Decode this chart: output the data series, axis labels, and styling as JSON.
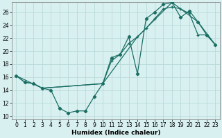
{
  "xlabel": "Humidex (Indice chaleur)",
  "bg_color": "#d9f0f0",
  "grid_color": "#b8dada",
  "line_color": "#1a6e64",
  "xlim": [
    -0.5,
    23.5
  ],
  "ylim": [
    9.5,
    27.5
  ],
  "xticks": [
    0,
    1,
    2,
    3,
    4,
    5,
    6,
    7,
    8,
    9,
    10,
    11,
    12,
    13,
    14,
    15,
    16,
    17,
    18,
    19,
    20,
    21,
    22,
    23
  ],
  "yticks": [
    10,
    12,
    14,
    16,
    18,
    20,
    22,
    24,
    26
  ],
  "series1_x": [
    0,
    1,
    2,
    3,
    4,
    5,
    6,
    7,
    8,
    9,
    10,
    11,
    12,
    13,
    14,
    15,
    16,
    17,
    18,
    19,
    20,
    21,
    22,
    23
  ],
  "series1_y": [
    16.2,
    15.2,
    15.0,
    14.3,
    14.0,
    11.2,
    10.5,
    10.8,
    10.8,
    13.0,
    15.0,
    19.0,
    19.5,
    22.2,
    16.5,
    25.0,
    26.0,
    27.2,
    27.5,
    25.2,
    26.2,
    24.5,
    22.5,
    21.0
  ],
  "series2_x": [
    0,
    1,
    2,
    3,
    10,
    11,
    12,
    13,
    14,
    15,
    16,
    17,
    18,
    19,
    20,
    21,
    22,
    23
  ],
  "series2_y": [
    16.2,
    15.2,
    15.0,
    14.3,
    15.0,
    18.5,
    19.5,
    21.2,
    22.2,
    23.5,
    25.0,
    26.5,
    26.8,
    26.5,
    25.8,
    22.5,
    22.5,
    21.0
  ],
  "series3_x": [
    0,
    3,
    10,
    14,
    18,
    21,
    23
  ],
  "series3_y": [
    16.2,
    14.3,
    15.0,
    22.2,
    27.5,
    24.5,
    21.0
  ]
}
